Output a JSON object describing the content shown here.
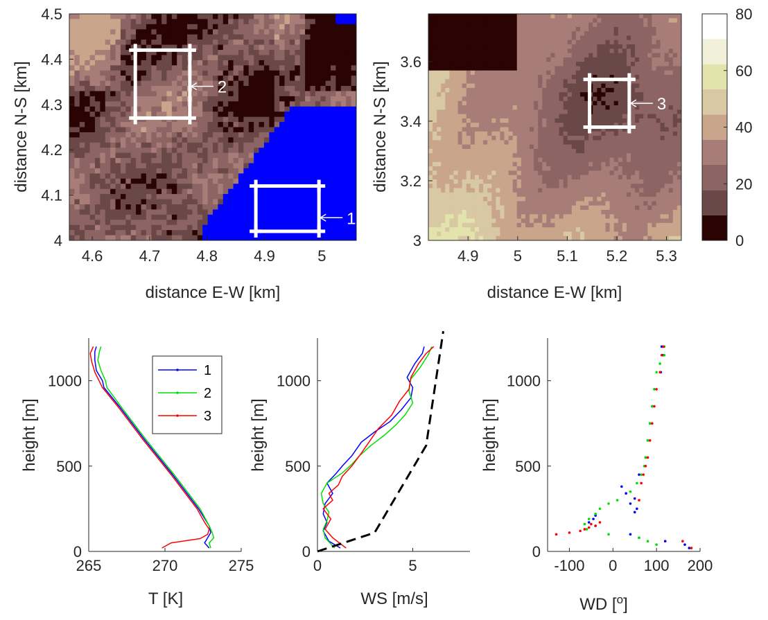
{
  "colors": {
    "water": "#0000ff",
    "box": "#ffffff",
    "series1": "#0000ff",
    "series2": "#00e000",
    "series3": "#ff0000",
    "reference": "#000000",
    "colormap": [
      "#2a0303",
      "#6b4848",
      "#8c6464",
      "#a87d78",
      "#c9a58b",
      "#d8c8a3",
      "#e3e3ad",
      "#f1f1d9",
      "#ffffff"
    ]
  },
  "chart_data": [
    {
      "type": "heatmap",
      "id": "map-left",
      "xlabel": "distance E-W [km]",
      "ylabel": "distance N-S [km]",
      "xlim": [
        4.56,
        5.06
      ],
      "ylim": [
        4.0,
        4.5
      ],
      "xticks": [
        "4.6",
        "4.7",
        "4.8",
        "4.9",
        "5"
      ],
      "xtick_values": [
        4.6,
        4.7,
        4.8,
        4.9,
        5.0
      ],
      "yticks": [
        "4",
        "4.1",
        "4.2",
        "4.3",
        "4.4",
        "4.5"
      ],
      "ytick_values": [
        4.0,
        4.1,
        4.2,
        4.3,
        4.4,
        4.5
      ],
      "boxes": [
        {
          "label": "1",
          "x": [
            4.885,
            4.995
          ],
          "y": [
            4.02,
            4.12
          ],
          "label_x": 5.03,
          "label_y": 4.05
        },
        {
          "label": "2",
          "x": [
            4.675,
            4.77
          ],
          "y": [
            4.27,
            4.42
          ],
          "label_x": 4.8,
          "label_y": 4.34
        }
      ]
    },
    {
      "type": "heatmap",
      "id": "map-right",
      "xlabel": "distance E-W [km]",
      "ylabel": "distance N-S [km]",
      "xlim": [
        4.82,
        5.33
      ],
      "ylim": [
        3.0,
        3.76
      ],
      "xticks": [
        "4.9",
        "5",
        "5.1",
        "5.2",
        "5.3"
      ],
      "xtick_values": [
        4.9,
        5.0,
        5.1,
        5.2,
        5.3
      ],
      "yticks": [
        "3",
        "3.2",
        "3.4",
        "3.6"
      ],
      "ytick_values": [
        3.0,
        3.2,
        3.4,
        3.6
      ],
      "boxes": [
        {
          "label": "3",
          "x": [
            5.145,
            5.225
          ],
          "y": [
            3.38,
            3.54
          ],
          "label_x": 5.265,
          "label_y": 3.46
        }
      ],
      "colorbar": {
        "ticks": [
          "0",
          "20",
          "40",
          "60",
          "80"
        ],
        "tick_values": [
          0,
          20,
          40,
          60,
          80
        ],
        "range": [
          0,
          80
        ],
        "levels": 9
      }
    },
    {
      "type": "line",
      "id": "profile-T",
      "xlabel": "T [K]",
      "ylabel": "height [m]",
      "xlim": [
        265,
        275
      ],
      "ylim": [
        0,
        1250
      ],
      "xticks": [
        "265",
        "270",
        "275"
      ],
      "xtick_values": [
        265,
        270,
        275
      ],
      "yticks": [
        "0",
        "500",
        "1000"
      ],
      "ytick_values": [
        0,
        500,
        1000
      ],
      "legend": [
        "1",
        "2",
        "3"
      ],
      "legend_position": "top-right",
      "series": [
        {
          "name": "1",
          "x": [
            272.9,
            272.6,
            272.8,
            273.0,
            272.9,
            272.2,
            270.5,
            268.7,
            267.0,
            266.0,
            265.9,
            265.5,
            265.4,
            265.4,
            265.5
          ],
          "y": [
            20,
            50,
            80,
            110,
            150,
            250,
            450,
            650,
            850,
            960,
            1000,
            1060,
            1120,
            1170,
            1200
          ]
        },
        {
          "name": "2",
          "x": [
            273.0,
            272.9,
            273.2,
            273.1,
            272.9,
            272.3,
            270.6,
            268.8,
            267.1,
            266.2,
            266.1,
            265.8,
            265.6,
            265.7,
            265.8
          ],
          "y": [
            20,
            50,
            80,
            110,
            150,
            250,
            450,
            650,
            850,
            960,
            1000,
            1060,
            1120,
            1170,
            1200
          ]
        },
        {
          "name": "3",
          "x": [
            269.8,
            270.4,
            272.3,
            272.8,
            272.9,
            272.6,
            272.1,
            270.4,
            268.6,
            266.9,
            265.9,
            265.4,
            265.2,
            265.1,
            265.3
          ],
          "y": [
            20,
            50,
            75,
            100,
            130,
            170,
            250,
            450,
            650,
            850,
            960,
            1050,
            1110,
            1160,
            1200
          ]
        }
      ]
    },
    {
      "type": "line",
      "id": "profile-WS",
      "xlabel": "WS [m/s]",
      "ylabel": "height [m]",
      "xlim": [
        0,
        8
      ],
      "ylim": [
        0,
        1250
      ],
      "xticks": [
        "0",
        "5"
      ],
      "xtick_values": [
        0,
        5
      ],
      "yticks": [
        "0",
        "500",
        "1000"
      ],
      "ytick_values": [
        0,
        500,
        1000
      ],
      "series": [
        {
          "name": "1",
          "x": [
            1.2,
            0.6,
            0.3,
            0.5,
            0.3,
            0.4,
            0.8,
            0.5,
            1.0,
            1.3,
            1.8,
            2.3,
            3.0,
            3.8,
            4.4,
            4.9,
            5.0,
            4.7,
            5.1,
            5.5,
            5.6
          ],
          "y": [
            20,
            60,
            120,
            170,
            220,
            280,
            340,
            400,
            460,
            500,
            560,
            640,
            700,
            760,
            830,
            900,
            960,
            1020,
            1100,
            1160,
            1200
          ]
        },
        {
          "name": "2",
          "x": [
            0.9,
            0.4,
            0.3,
            0.5,
            0.6,
            0.3,
            0.2,
            0.5,
            1.3,
            1.8,
            2.2,
            2.8,
            3.5,
            4.1,
            4.6,
            5.0,
            4.8,
            4.9,
            5.4,
            5.8,
            6.0
          ],
          "y": [
            20,
            80,
            130,
            180,
            230,
            280,
            340,
            400,
            460,
            510,
            560,
            620,
            680,
            740,
            800,
            870,
            940,
            1010,
            1080,
            1150,
            1200
          ]
        },
        {
          "name": "3",
          "x": [
            1.5,
            0.8,
            0.4,
            0.7,
            0.3,
            0.8,
            0.6,
            1.1,
            1.3,
            1.8,
            2.2,
            2.7,
            3.2,
            3.9,
            4.3,
            4.8,
            4.9,
            5.3,
            5.7,
            6.1
          ],
          "y": [
            20,
            80,
            130,
            190,
            250,
            300,
            340,
            390,
            440,
            500,
            560,
            640,
            720,
            800,
            880,
            950,
            1020,
            1100,
            1160,
            1200
          ]
        },
        {
          "name": "reference",
          "style": "dashed",
          "x": [
            0,
            3.0,
            5.7,
            6.6
          ],
          "y": [
            0,
            110,
            620,
            1290
          ]
        }
      ]
    },
    {
      "type": "scatter",
      "id": "profile-WD",
      "xlabel": "WD [o]",
      "ylabel": "height [m]",
      "xlim": [
        -150,
        200
      ],
      "ylim": [
        0,
        1250
      ],
      "xticks": [
        "-100",
        "0",
        "100",
        "200"
      ],
      "xtick_values": [
        -100,
        0,
        100,
        200
      ],
      "yticks": [
        "0",
        "500",
        "1000"
      ],
      "ytick_values": [
        0,
        500,
        1000
      ],
      "series": [
        {
          "name": "1",
          "x": [
            175,
            165,
            120,
            60,
            40,
            -40,
            -55,
            -45,
            -40,
            50,
            55,
            40,
            50,
            30,
            20,
            60,
            75,
            80,
            85,
            90,
            95,
            110,
            115,
            112
          ],
          "y": [
            20,
            40,
            60,
            80,
            100,
            150,
            170,
            190,
            210,
            230,
            250,
            280,
            310,
            340,
            380,
            450,
            550,
            650,
            750,
            850,
            950,
            1050,
            1150,
            1200
          ]
        },
        {
          "name": "2",
          "x": [
            100,
            80,
            60,
            -10,
            -60,
            -65,
            -55,
            -40,
            -30,
            -10,
            10,
            40,
            55,
            65,
            72,
            75,
            80,
            85,
            90,
            95,
            100,
            108,
            118,
            118
          ],
          "y": [
            40,
            60,
            80,
            100,
            130,
            160,
            190,
            220,
            250,
            280,
            300,
            350,
            400,
            450,
            500,
            550,
            650,
            750,
            850,
            950,
            1050,
            1100,
            1150,
            1200
          ]
        },
        {
          "name": "3",
          "x": [
            -130,
            -100,
            -75,
            -65,
            -55,
            -40,
            -50,
            -30,
            180,
            160,
            60,
            65,
            70,
            75,
            80,
            85,
            90,
            95,
            100,
            108,
            112,
            116
          ],
          "y": [
            100,
            110,
            120,
            130,
            140,
            150,
            160,
            170,
            20,
            60,
            300,
            400,
            450,
            500,
            550,
            650,
            750,
            850,
            950,
            1050,
            1150,
            1200
          ]
        }
      ]
    }
  ]
}
